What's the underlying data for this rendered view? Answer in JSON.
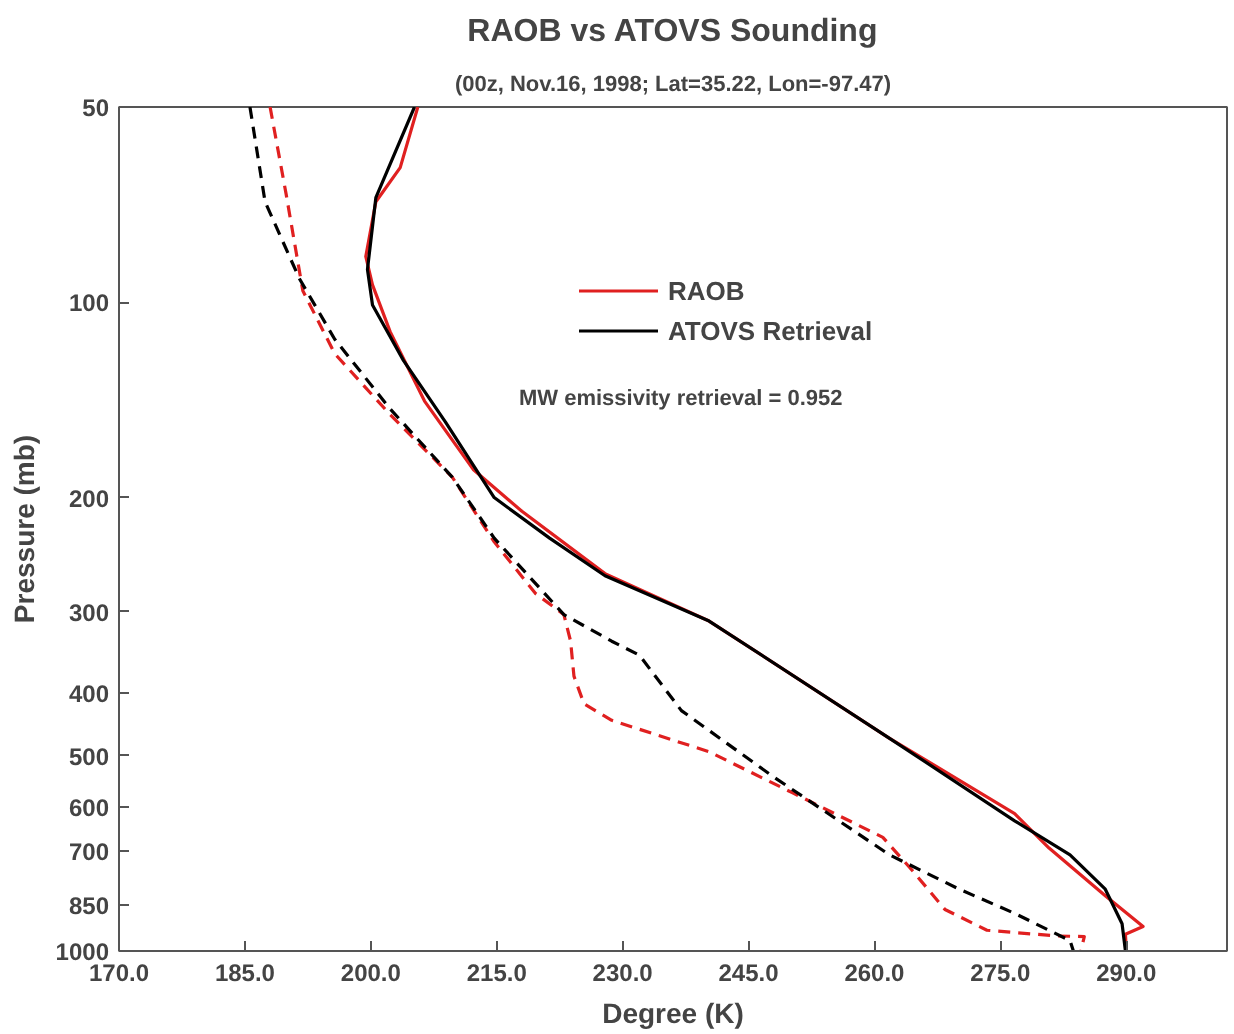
{
  "chart_data": {
    "type": "line",
    "title": "RAOB vs ATOVS Sounding",
    "subtitle": "(00z, Nov.16, 1998; Lat=35.22, Lon=-97.47)",
    "xlabel": "Degree (K)",
    "ylabel": "Pressure (mb)",
    "annotations": [
      "MW emissivity retrieval = 0.952"
    ],
    "series": [
      {
        "name": "RAOB",
        "color": "#e02020",
        "line_style": "solid",
        "x": [
          205.6,
          203.5,
          200.6,
          199.4,
          200.2,
          202.3,
          206.4,
          212.2,
          218.0,
          227.9,
          240.3,
          261.8,
          276.7,
          280.8,
          287.5,
          292.0,
          289.9,
          290.0
        ],
        "values": [
          50,
          62,
          70,
          85,
          94,
          111,
          142,
          181,
          210,
          262,
          310,
          470,
          614,
          694,
          822,
          917,
          942,
          1000
        ]
      },
      {
        "name": "ATOVS Retrieval",
        "color": "#000000",
        "line_style": "solid",
        "x": [
          205.2,
          200.6,
          199.6,
          200.2,
          203.9,
          208.9,
          214.7,
          221.3,
          227.9,
          240.3,
          261.8,
          276.7,
          283.3,
          287.5,
          289.5,
          289.9
        ],
        "values": [
          50,
          69,
          89,
          101,
          123,
          153,
          200,
          231,
          264,
          310,
          470,
          630,
          711,
          803,
          908,
          1000
        ]
      },
      {
        "color": "#e02020",
        "line_style": "dashed",
        "x": [
          188.0,
          189.9,
          191.9,
          195.7,
          202.3,
          209.7,
          214.7,
          219.6,
          223.0,
          223.8,
          224.2,
          225.4,
          228.7,
          240.3,
          250.2,
          261.0,
          264.3,
          268.4,
          273.4,
          281.7,
          285.0,
          284.6
        ],
        "values": [
          50,
          68,
          96,
          120,
          149,
          186,
          234,
          281,
          303,
          333,
          377,
          416,
          441,
          493,
          570,
          668,
          746,
          863,
          929,
          948,
          950,
          1000
        ]
      },
      {
        "color": "#000000",
        "line_style": "dashed",
        "x": [
          185.6,
          187.4,
          191.5,
          195.7,
          202.3,
          209.7,
          214.7,
          223.0,
          228.7,
          232.0,
          237.0,
          247.8,
          261.8,
          270.1,
          276.7,
          283.3,
          283.7
        ],
        "values": [
          50,
          70,
          92,
          114,
          146,
          186,
          231,
          303,
          333,
          350,
          426,
          537,
          711,
          803,
          875,
          964,
          1000
        ]
      }
    ],
    "xlim": [
      170,
      302
    ],
    "ylim": [
      1000,
      50
    ],
    "log": "y",
    "xticks": [
      {
        "value": 170,
        "label": "170.0"
      },
      {
        "value": 185,
        "label": "185.0"
      },
      {
        "value": 200,
        "label": "200.0"
      },
      {
        "value": 215,
        "label": "215.0"
      },
      {
        "value": 230,
        "label": "230.0"
      },
      {
        "value": 245,
        "label": "245.0"
      },
      {
        "value": 260,
        "label": "260.0"
      },
      {
        "value": 275,
        "label": "275.0"
      },
      {
        "value": 290,
        "label": "290.0"
      }
    ],
    "yticks": [
      50,
      100,
      200,
      300,
      400,
      500,
      600,
      700,
      850,
      1000
    ],
    "grid": false,
    "legend": "top right"
  }
}
